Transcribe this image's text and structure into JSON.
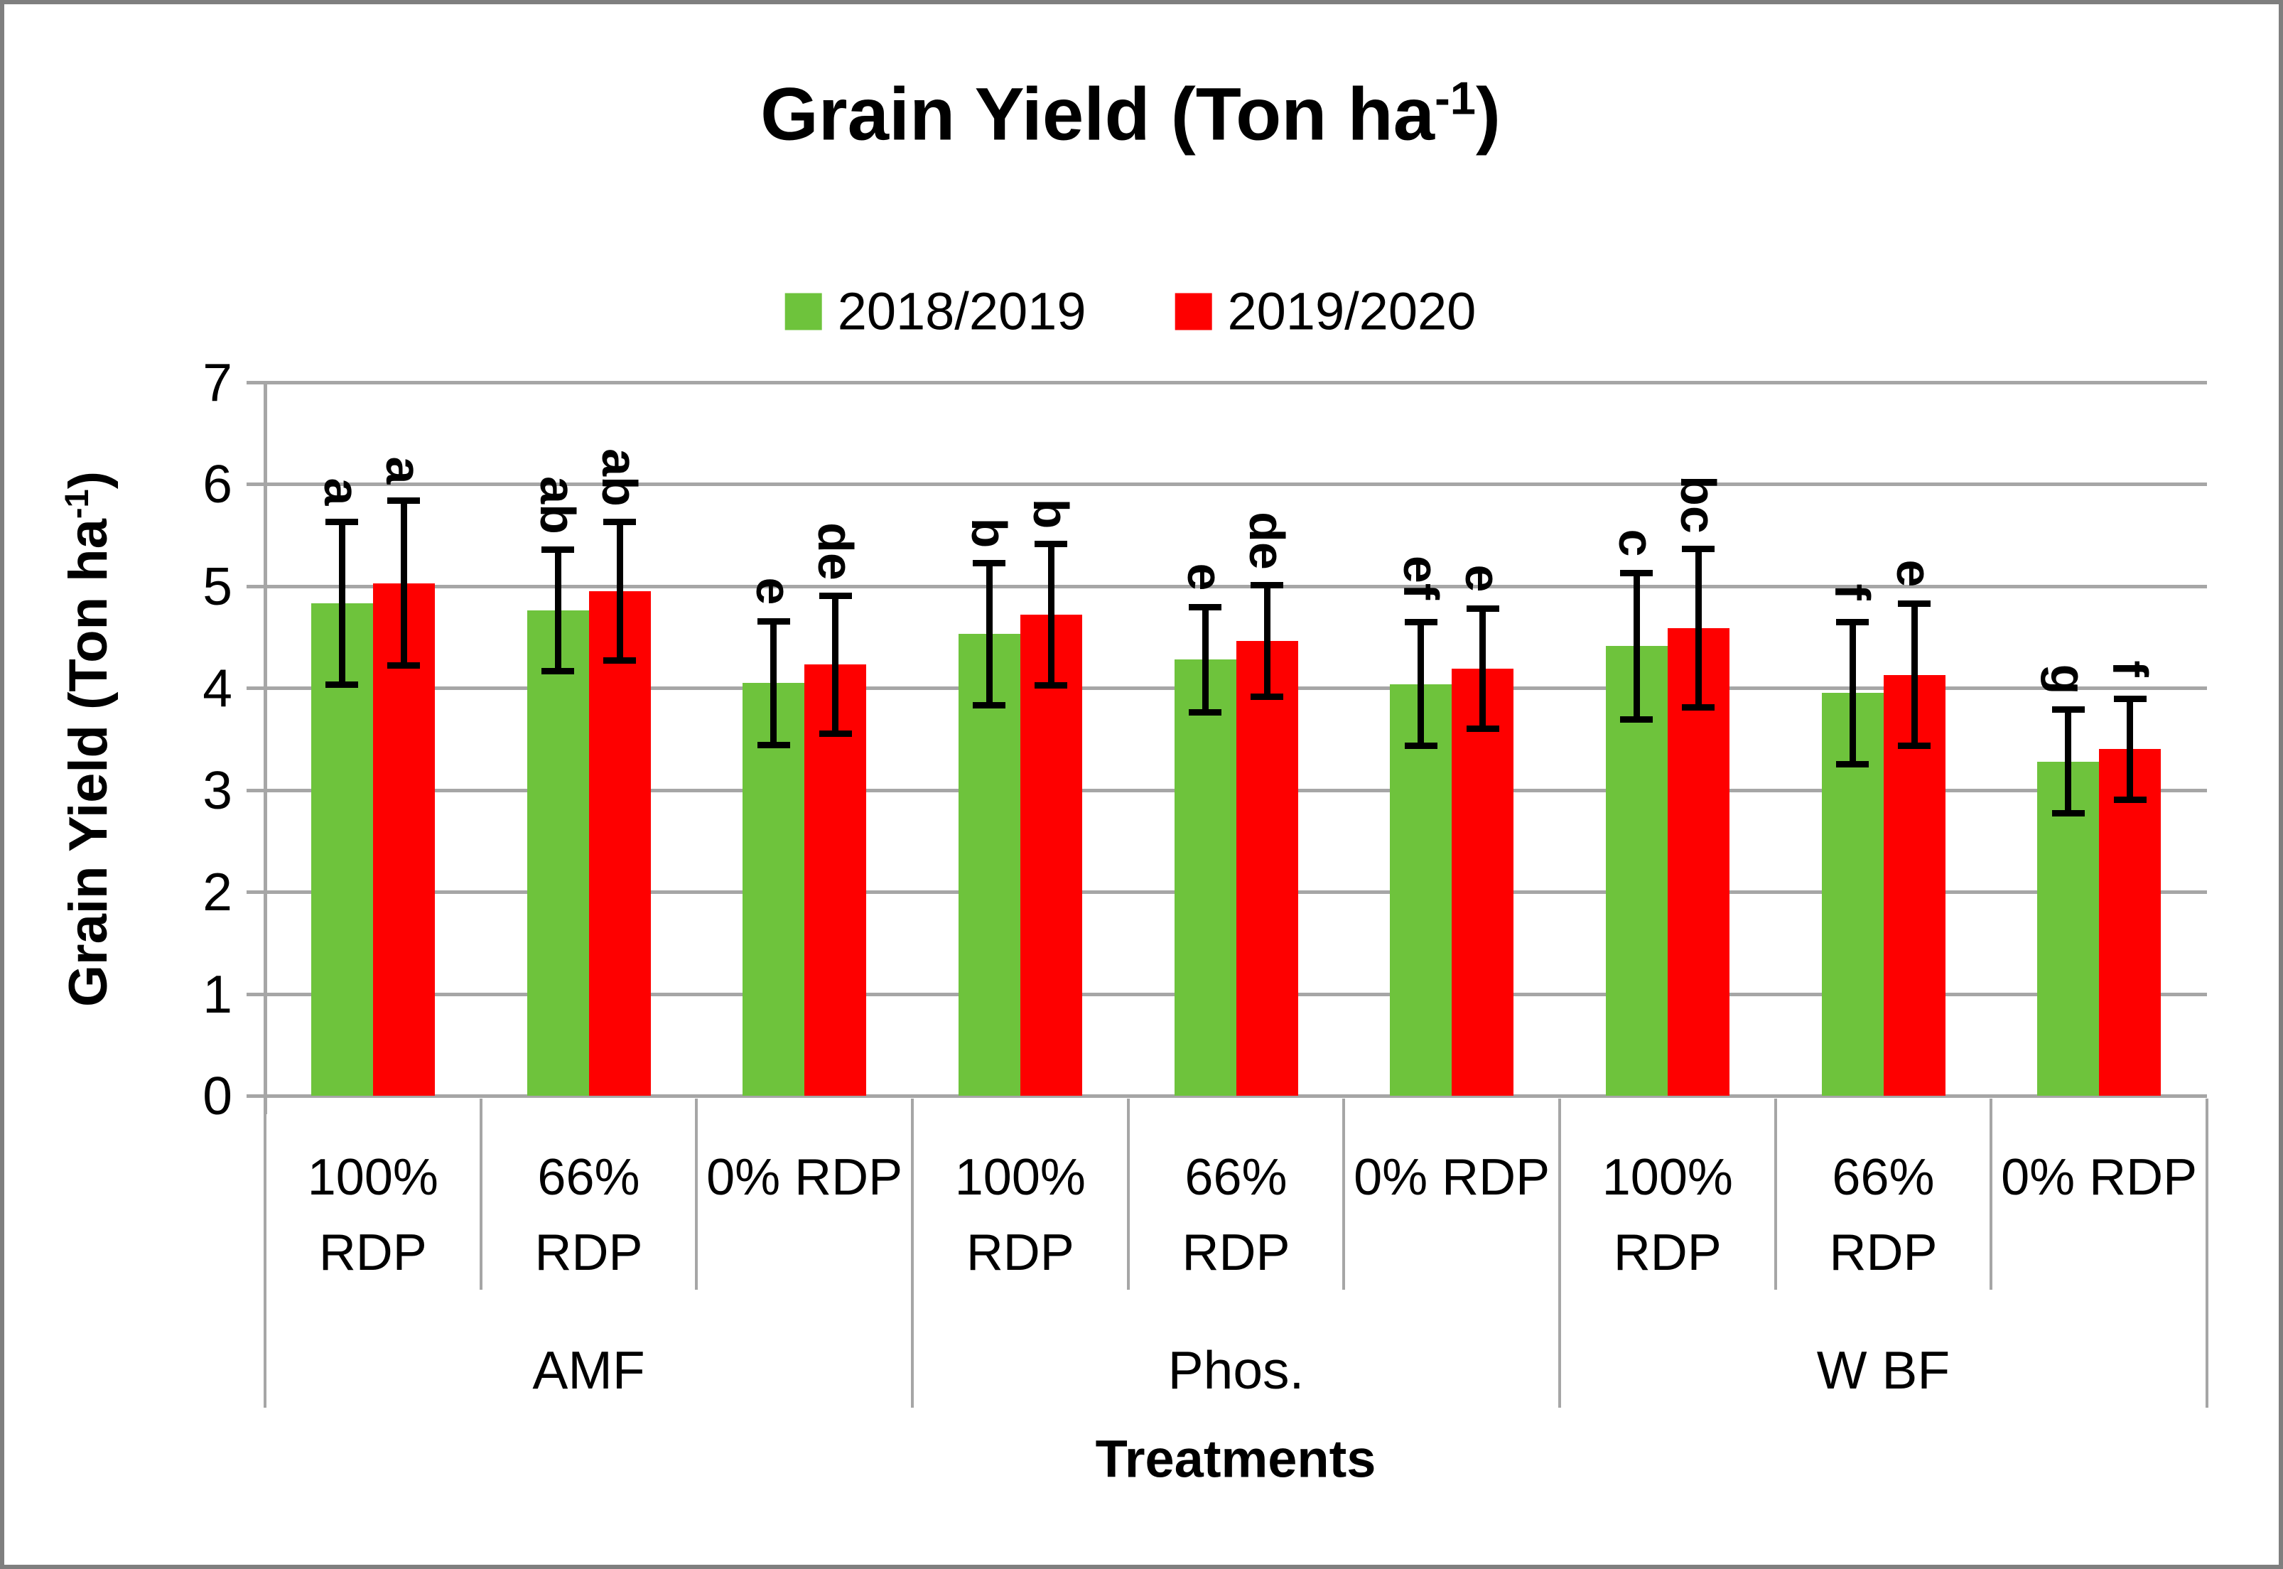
{
  "title": {
    "pre": "Grain Yield (Ton ha",
    "sup": "-1",
    "post": ")"
  },
  "legend": {
    "items": [
      {
        "label": "2018/2019",
        "color": "#6ec33c"
      },
      {
        "label": "2019/2020",
        "color": "#fe0000"
      }
    ]
  },
  "y_axis": {
    "title_pre": "Grain Yield (Ton ha",
    "title_sup": "-1",
    "title_post": ")",
    "tick_labels": [
      "0",
      "1",
      "2",
      "3",
      "4",
      "5",
      "6",
      "7"
    ]
  },
  "x_axis": {
    "title": "Treatments"
  },
  "colors": {
    "gridline": "#a6a6a6",
    "error_bar": "#000000",
    "figure_border": "#7f7f7f"
  },
  "chart_data": {
    "type": "bar",
    "title": "Grain Yield (Ton ha-1)",
    "xlabel": "Treatments",
    "ylabel": "Grain Yield (Ton ha-1)",
    "ylim": [
      0,
      7
    ],
    "y_tick_step": 1,
    "grid": true,
    "legend_position": "top-center",
    "group_labels": [
      "AMF",
      "Phos.",
      "W BF"
    ],
    "categories": [
      "100% RDP",
      "66% RDP",
      "0% RDP",
      "100% RDP",
      "66% RDP",
      "0% RDP",
      "100% RDP",
      "66% RDP",
      "0% RDP"
    ],
    "series": [
      {
        "name": "2018/2019",
        "color": "#6ec33c",
        "values": [
          4.83,
          4.76,
          4.05,
          4.53,
          4.28,
          4.04,
          4.41,
          3.95,
          3.28
        ],
        "errors": [
          0.8,
          0.6,
          0.61,
          0.7,
          0.52,
          0.61,
          0.72,
          0.7,
          0.51
        ],
        "letters": [
          "a",
          "ab",
          "e",
          "b",
          "e",
          "ef",
          "c",
          "f",
          "g"
        ]
      },
      {
        "name": "2019/2020",
        "color": "#fe0000",
        "values": [
          5.03,
          4.95,
          4.23,
          4.72,
          4.46,
          4.19,
          4.59,
          4.13,
          3.4
        ],
        "errors": [
          0.81,
          0.68,
          0.68,
          0.7,
          0.55,
          0.59,
          0.78,
          0.7,
          0.5
        ],
        "letters": [
          "a",
          "ab",
          "de",
          "b",
          "de",
          "e",
          "bc",
          "e",
          "f"
        ]
      }
    ],
    "error_bars": true,
    "significance_letters_rotated_90deg": true
  }
}
